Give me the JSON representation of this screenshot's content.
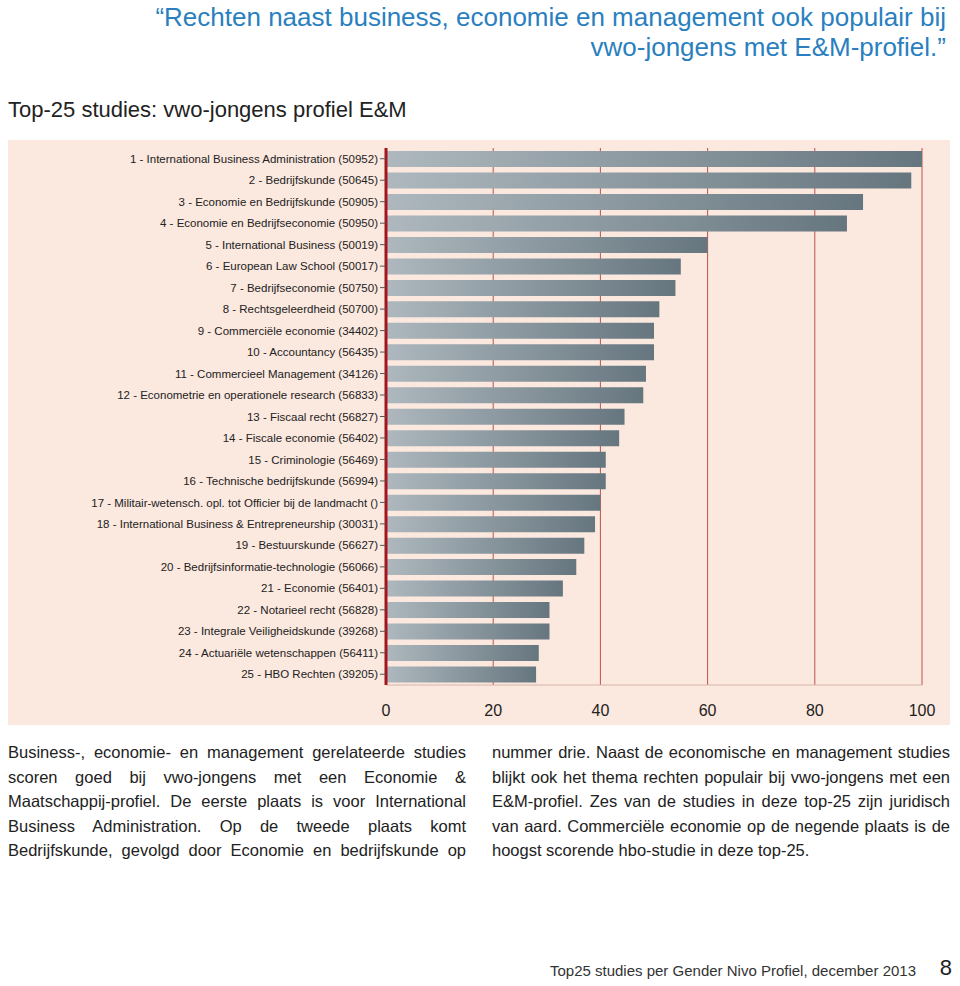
{
  "header": {
    "quote_lines": [
      "“Rechten naast business, economie en management ook populair bij",
      "vwo-jongens met E&M-profiel.”"
    ]
  },
  "chart_data": {
    "type": "bar",
    "title": "Top-25 studies: vwo-jongens profiel E&M",
    "orientation": "horizontal",
    "categories": [
      "1 - International Business Administration (50952)",
      "2 - Bedrijfskunde (50645)",
      "3 - Economie en Bedrijfskunde (50905)",
      "4 - Economie en Bedrijfseconomie (50950)",
      "5 - International Business (50019)",
      "6 - European Law School (50017)",
      "7 - Bedrijfseconomie (50750)",
      "8 - Rechtsgeleerdheid (50700)",
      "9 - Commerciële economie (34402)",
      "10 - Accountancy (56435)",
      "11 - Commercieel Management (34126)",
      "12 - Econometrie en operationele research (56833)",
      "13 - Fiscaal recht (56827)",
      "14 - Fiscale economie (56402)",
      "15 - Criminologie (56469)",
      "16 - Technische bedrijfskunde (56994)",
      "17 - Militair-wetensch. opl. tot Officier bij de landmacht ()",
      "18 - International Business & Entrepreneurship (30031)",
      "19 - Bestuurskunde (56627)",
      "20 - Bedrijfsinformatie-technologie (56066)",
      "21 - Economie (56401)",
      "22 - Notarieel recht (56828)",
      "23 - Integrale Veiligheidskunde (39268)",
      "24 - Actuariële wetenschappen (56411)",
      "25 - HBO Rechten (39205)"
    ],
    "values": [
      100,
      98,
      89,
      86,
      60,
      55,
      54,
      51,
      50,
      50,
      48.5,
      48,
      44.5,
      43.5,
      41,
      41,
      40,
      39,
      37,
      35.5,
      33,
      30.5,
      30.5,
      28.5,
      28
    ],
    "color": "#66767f",
    "xlim": [
      0,
      100
    ],
    "xticks": [
      0,
      20,
      40,
      60,
      80,
      100
    ],
    "grid": true
  },
  "body": "Business-, economie- en management gerelateerde studies scoren goed bij vwo-jongens met een Economie & Maatschappij-profiel. De eerste plaats is voor International Business Administration. Op de tweede plaats komt Bedrijfskunde, gevolgd door Economie en bedrijfskunde op nummer drie. Naast de economische en management studies blijkt ook het thema rechten populair bij vwo-jongens met een E&M-profiel. Zes van de studies in deze top-25 zijn juridisch van aard. Commerciële economie op de negende plaats is de hoogst scorende hbo-studie in deze top-25.",
  "footer": {
    "text": "Top25 studies per Gender Nivo Profiel, december 2013",
    "page": "8"
  }
}
